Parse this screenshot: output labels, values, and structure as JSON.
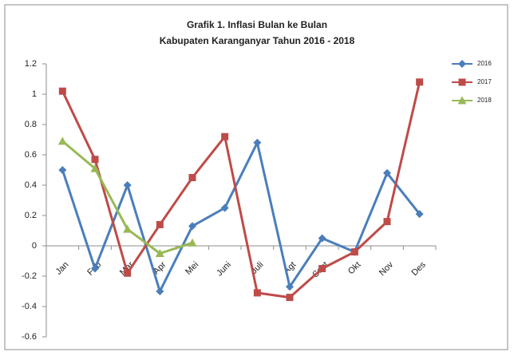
{
  "chart_data": {
    "type": "line",
    "title": "Grafik 1. Inflasi Bulan ke Bulan",
    "subtitle": "Kabupaten Karanganyar Tahun 2016 - 2018",
    "categories": [
      "Jan",
      "Feb",
      "Mar",
      "Apr",
      "Mei",
      "Juni",
      "Juli",
      "Agt",
      "Sept",
      "Okt",
      "Nov",
      "Des"
    ],
    "series": [
      {
        "name": "2016",
        "color": "#4a7ebb",
        "marker": "diamond",
        "values": [
          0.5,
          -0.15,
          0.4,
          -0.3,
          0.13,
          0.25,
          0.68,
          -0.27,
          0.05,
          -0.04,
          0.48,
          0.21
        ]
      },
      {
        "name": "2017",
        "color": "#be4b48",
        "marker": "square",
        "values": [
          1.02,
          0.57,
          -0.18,
          0.14,
          0.45,
          0.72,
          -0.31,
          -0.34,
          -0.15,
          -0.04,
          0.16,
          1.08
        ]
      },
      {
        "name": "2018",
        "color": "#98b954",
        "marker": "triangle",
        "values": [
          0.69,
          0.51,
          0.11,
          -0.05,
          0.02,
          null,
          null,
          null,
          null,
          null,
          null,
          null
        ]
      }
    ],
    "ylim": [
      -0.6,
      1.2
    ],
    "yticks": [
      -0.6,
      -0.4,
      -0.2,
      0,
      0.2,
      0.4,
      0.6,
      0.8,
      1,
      1.2
    ],
    "grid": false,
    "legend": "right"
  }
}
